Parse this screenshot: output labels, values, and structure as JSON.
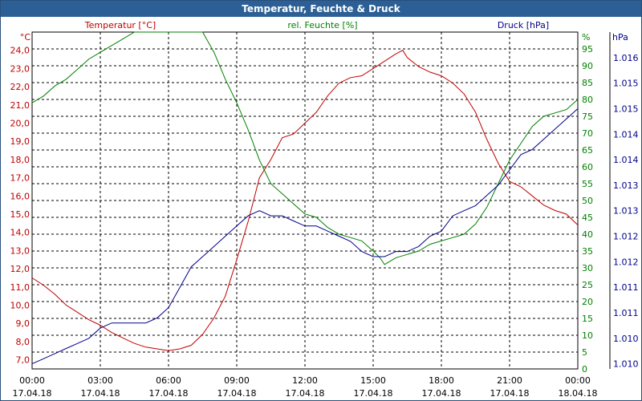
{
  "window": {
    "title": "Temperatur, Feuchte & Druck"
  },
  "colors": {
    "temp": "#c00000",
    "hum": "#008000",
    "pres": "#00008b",
    "titlebar": "#2b5f95",
    "grid": "#000000",
    "text": "#000000"
  },
  "chart_data": {
    "type": "line",
    "grid": true,
    "x_ticks": [
      {
        "time": "00:00",
        "date": "17.04.18"
      },
      {
        "time": "03:00",
        "date": "17.04.18"
      },
      {
        "time": "06:00",
        "date": "17.04.18"
      },
      {
        "time": "09:00",
        "date": "17.04.18"
      },
      {
        "time": "12:00",
        "date": "17.04.18"
      },
      {
        "time": "15:00",
        "date": "17.04.18"
      },
      {
        "time": "18:00",
        "date": "17.04.18"
      },
      {
        "time": "21:00",
        "date": "17.04.18"
      },
      {
        "time": "00:00",
        "date": "18.04.18"
      }
    ],
    "xlim_hours": [
      0,
      24
    ],
    "axes": {
      "temp": {
        "label": "Temperatur [°C]",
        "unit": "°C",
        "ylim": [
          6.5,
          25.0
        ],
        "ticks": [
          "7,0",
          "8,0",
          "9,0",
          "10,0",
          "11,0",
          "12,0",
          "13,0",
          "14,0",
          "15,0",
          "16,0",
          "17,0",
          "18,0",
          "19,0",
          "20,0",
          "21,0",
          "22,0",
          "23,0",
          "24,0"
        ]
      },
      "hum": {
        "label": "rel. Feuchte [%]",
        "unit": "%",
        "ylim": [
          0,
          100
        ],
        "ticks": [
          "0",
          "5",
          "10",
          "15",
          "20",
          "25",
          "30",
          "35",
          "40",
          "45",
          "50",
          "55",
          "60",
          "65",
          "70",
          "75",
          "80",
          "85",
          "90",
          "95"
        ]
      },
      "pres": {
        "label": "Druck [hPa]",
        "unit": "hPa",
        "ylim": [
          1009.9,
          1016.5
        ],
        "ticks": [
          {
            "v": 1010.0,
            "t": "1.010"
          },
          {
            "v": 1010.5,
            "t": "1.010"
          },
          {
            "v": 1011.0,
            "t": "1.011"
          },
          {
            "v": 1011.5,
            "t": "1.011"
          },
          {
            "v": 1012.0,
            "t": "1.012"
          },
          {
            "v": 1012.5,
            "t": "1.012"
          },
          {
            "v": 1013.0,
            "t": "1.013"
          },
          {
            "v": 1013.5,
            "t": "1.013"
          },
          {
            "v": 1014.0,
            "t": "1.014"
          },
          {
            "v": 1014.5,
            "t": "1.014"
          },
          {
            "v": 1015.0,
            "t": "1.015"
          },
          {
            "v": 1015.5,
            "t": "1.015"
          },
          {
            "v": 1016.0,
            "t": "1.016"
          },
          {
            "v": 1016.5,
            "t": "1.016"
          }
        ]
      }
    },
    "series": [
      {
        "name": "Temperatur [°C]",
        "axis": "temp",
        "x": [
          0,
          0.5,
          1.0,
          1.5,
          2.0,
          2.5,
          3.0,
          3.5,
          4.0,
          4.5,
          5.0,
          5.5,
          6.0,
          6.5,
          7.0,
          7.5,
          8.0,
          8.5,
          9.0,
          9.5,
          10.0,
          10.5,
          11.0,
          11.5,
          12.0,
          12.5,
          13.0,
          13.5,
          14.0,
          14.5,
          15.0,
          15.5,
          16.0,
          16.3,
          16.5,
          17.0,
          17.5,
          18.0,
          18.5,
          19.0,
          19.5,
          20.0,
          20.5,
          21.0,
          21.5,
          22.0,
          22.5,
          23.0,
          23.5,
          24.0
        ],
        "y": [
          11.5,
          11.1,
          10.6,
          10.0,
          9.6,
          9.2,
          8.9,
          8.5,
          8.2,
          7.9,
          7.7,
          7.6,
          7.5,
          7.6,
          7.8,
          8.4,
          9.3,
          10.5,
          12.5,
          14.6,
          17.0,
          18.0,
          19.2,
          19.4,
          20.0,
          20.6,
          21.5,
          22.2,
          22.5,
          22.6,
          23.0,
          23.4,
          23.8,
          24.0,
          23.6,
          23.1,
          22.8,
          22.6,
          22.2,
          21.6,
          20.6,
          19.1,
          17.8,
          16.8,
          16.5,
          16.0,
          15.5,
          15.2,
          15.0,
          14.4
        ]
      },
      {
        "name": "rel. Feuchte [%]",
        "axis": "hum",
        "x": [
          0,
          0.5,
          1.0,
          1.5,
          2.0,
          2.5,
          3.0,
          3.5,
          4.0,
          4.5,
          5.0,
          5.5,
          6.0,
          6.5,
          7.0,
          7.5,
          8.0,
          8.5,
          9.0,
          9.5,
          10.0,
          10.5,
          11.0,
          11.5,
          12.0,
          12.5,
          13.0,
          13.5,
          14.0,
          14.5,
          15.0,
          15.3,
          15.5,
          16.0,
          16.5,
          17.0,
          17.5,
          18.0,
          18.5,
          19.0,
          19.5,
          20.0,
          20.5,
          21.0,
          21.5,
          22.0,
          22.5,
          23.0,
          23.5,
          24.0
        ],
        "y": [
          79,
          81,
          84,
          86,
          89,
          92,
          94,
          96,
          98,
          100,
          100,
          100,
          100,
          100,
          100,
          100,
          94,
          86,
          79,
          71,
          62,
          55,
          52,
          49,
          46,
          45,
          42,
          40,
          39,
          38,
          35,
          33,
          31,
          33,
          34,
          35,
          37,
          38,
          39,
          40,
          43,
          48,
          55,
          62,
          67,
          72,
          75,
          76,
          77,
          80
        ]
      },
      {
        "name": "Druck [hPa]",
        "axis": "pres",
        "x": [
          0,
          0.5,
          1.0,
          1.5,
          2.0,
          2.5,
          3.0,
          3.5,
          4.0,
          4.5,
          5.0,
          5.5,
          6.0,
          6.5,
          7.0,
          7.5,
          8.0,
          8.5,
          9.0,
          9.5,
          10.0,
          10.5,
          11.0,
          11.5,
          12.0,
          12.5,
          13.0,
          13.5,
          14.0,
          14.5,
          15.0,
          15.5,
          16.0,
          16.5,
          17.0,
          17.5,
          18.0,
          18.5,
          19.0,
          19.5,
          20.0,
          20.5,
          21.0,
          21.5,
          22.0,
          22.5,
          23.0,
          23.5,
          24.0
        ],
        "y": [
          1010.0,
          1010.1,
          1010.2,
          1010.3,
          1010.4,
          1010.5,
          1010.7,
          1010.8,
          1010.8,
          1010.8,
          1010.8,
          1010.9,
          1011.1,
          1011.5,
          1011.9,
          1012.1,
          1012.3,
          1012.5,
          1012.7,
          1012.9,
          1013.0,
          1012.9,
          1012.9,
          1012.8,
          1012.7,
          1012.7,
          1012.6,
          1012.5,
          1012.4,
          1012.2,
          1012.1,
          1012.1,
          1012.2,
          1012.2,
          1012.3,
          1012.5,
          1012.6,
          1012.9,
          1013.0,
          1013.1,
          1013.3,
          1013.5,
          1013.8,
          1014.1,
          1014.2,
          1014.4,
          1014.6,
          1014.8,
          1015.0
        ]
      }
    ]
  }
}
